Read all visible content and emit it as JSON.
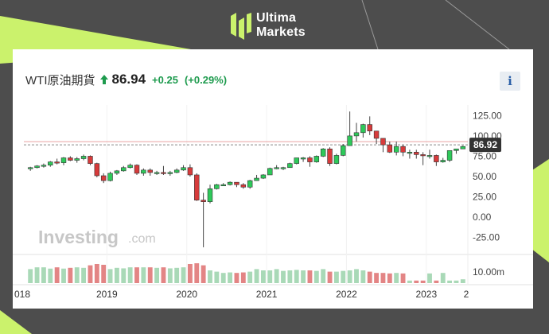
{
  "brand": {
    "line1": "Ultima",
    "line2": "Markets",
    "logo": "ultima-markets-logo"
  },
  "header": {
    "symbol": "WTI原油期貨",
    "price": "86.94",
    "change": "+0.25",
    "change_pct": "(+0.29%)",
    "direction": "up",
    "info_label": "i",
    "up_color": "#1e9b4e"
  },
  "watermark": {
    "main": "Investing",
    "suffix": ".com"
  },
  "chart_data": {
    "type": "candlestick",
    "interval": "monthly",
    "y_ticks": [
      "125.00",
      "100.00",
      "75.00",
      "50.00",
      "25.00",
      "0.00",
      "-25.00"
    ],
    "ylim": [
      -40,
      140
    ],
    "volume_tick": "10.00m",
    "x_ticks": [
      "018",
      "2019",
      "2020",
      "2021",
      "2022",
      "2023",
      "2"
    ],
    "last_price_label": "86.92",
    "reference_level": 90,
    "colors": {
      "up": "#2ec95a",
      "down": "#d73b3b",
      "vol_up": "#a9d9b7",
      "vol_down": "#e38585"
    },
    "candles": [
      {
        "o": 60,
        "h": 62,
        "l": 57,
        "c": 61
      },
      {
        "o": 61,
        "h": 64,
        "l": 60,
        "c": 63
      },
      {
        "o": 63,
        "h": 66,
        "l": 61,
        "c": 64
      },
      {
        "o": 64,
        "h": 69,
        "l": 62,
        "c": 68
      },
      {
        "o": 68,
        "h": 72,
        "l": 65,
        "c": 67
      },
      {
        "o": 67,
        "h": 74,
        "l": 64,
        "c": 73
      },
      {
        "o": 73,
        "h": 75,
        "l": 69,
        "c": 70
      },
      {
        "o": 70,
        "h": 74,
        "l": 67,
        "c": 72
      },
      {
        "o": 72,
        "h": 77,
        "l": 70,
        "c": 75
      },
      {
        "o": 75,
        "h": 76,
        "l": 64,
        "c": 66
      },
      {
        "o": 66,
        "h": 67,
        "l": 49,
        "c": 51
      },
      {
        "o": 51,
        "h": 54,
        "l": 42,
        "c": 45
      },
      {
        "o": 45,
        "h": 56,
        "l": 44,
        "c": 54
      },
      {
        "o": 54,
        "h": 58,
        "l": 52,
        "c": 57
      },
      {
        "o": 57,
        "h": 63,
        "l": 56,
        "c": 61
      },
      {
        "o": 61,
        "h": 66,
        "l": 60,
        "c": 64
      },
      {
        "o": 64,
        "h": 65,
        "l": 52,
        "c": 54
      },
      {
        "o": 54,
        "h": 60,
        "l": 51,
        "c": 58
      },
      {
        "o": 58,
        "h": 60,
        "l": 51,
        "c": 55
      },
      {
        "o": 55,
        "h": 57,
        "l": 52,
        "c": 55
      },
      {
        "o": 55,
        "h": 63,
        "l": 52,
        "c": 54
      },
      {
        "o": 54,
        "h": 57,
        "l": 51,
        "c": 55
      },
      {
        "o": 55,
        "h": 60,
        "l": 54,
        "c": 58
      },
      {
        "o": 58,
        "h": 64,
        "l": 57,
        "c": 61
      },
      {
        "o": 61,
        "h": 65,
        "l": 50,
        "c": 52
      },
      {
        "o": 52,
        "h": 54,
        "l": 20,
        "c": 21
      },
      {
        "o": 21,
        "h": 30,
        "l": -37,
        "c": 19
      },
      {
        "o": 19,
        "h": 40,
        "l": 17,
        "c": 35
      },
      {
        "o": 35,
        "h": 41,
        "l": 34,
        "c": 40
      },
      {
        "o": 40,
        "h": 42,
        "l": 39,
        "c": 40
      },
      {
        "o": 40,
        "h": 44,
        "l": 39,
        "c": 43
      },
      {
        "o": 43,
        "h": 43,
        "l": 37,
        "c": 40
      },
      {
        "o": 40,
        "h": 42,
        "l": 35,
        "c": 37
      },
      {
        "o": 37,
        "h": 46,
        "l": 35,
        "c": 45
      },
      {
        "o": 45,
        "h": 52,
        "l": 45,
        "c": 48
      },
      {
        "o": 48,
        "h": 53,
        "l": 47,
        "c": 52
      },
      {
        "o": 52,
        "h": 61,
        "l": 52,
        "c": 60
      },
      {
        "o": 60,
        "h": 64,
        "l": 59,
        "c": 61
      },
      {
        "o": 61,
        "h": 62,
        "l": 58,
        "c": 61
      },
      {
        "o": 61,
        "h": 67,
        "l": 61,
        "c": 66
      },
      {
        "o": 66,
        "h": 73,
        "l": 65,
        "c": 73
      },
      {
        "o": 73,
        "h": 74,
        "l": 68,
        "c": 73
      },
      {
        "o": 73,
        "h": 75,
        "l": 62,
        "c": 68
      },
      {
        "o": 68,
        "h": 76,
        "l": 67,
        "c": 75
      },
      {
        "o": 75,
        "h": 85,
        "l": 74,
        "c": 84
      },
      {
        "o": 84,
        "h": 86,
        "l": 63,
        "c": 66
      },
      {
        "o": 66,
        "h": 78,
        "l": 65,
        "c": 76
      },
      {
        "o": 76,
        "h": 90,
        "l": 75,
        "c": 88
      },
      {
        "o": 88,
        "h": 130,
        "l": 88,
        "c": 100
      },
      {
        "o": 100,
        "h": 116,
        "l": 93,
        "c": 104
      },
      {
        "o": 104,
        "h": 115,
        "l": 98,
        "c": 114
      },
      {
        "o": 114,
        "h": 124,
        "l": 101,
        "c": 106
      },
      {
        "o": 106,
        "h": 106,
        "l": 90,
        "c": 97
      },
      {
        "o": 97,
        "h": 97,
        "l": 80,
        "c": 89
      },
      {
        "o": 89,
        "h": 93,
        "l": 79,
        "c": 80
      },
      {
        "o": 80,
        "h": 93,
        "l": 76,
        "c": 87
      },
      {
        "o": 87,
        "h": 89,
        "l": 75,
        "c": 80
      },
      {
        "o": 80,
        "h": 83,
        "l": 72,
        "c": 80
      },
      {
        "o": 80,
        "h": 83,
        "l": 72,
        "c": 77
      },
      {
        "o": 77,
        "h": 80,
        "l": 64,
        "c": 76
      },
      {
        "o": 76,
        "h": 83,
        "l": 72,
        "c": 76
      },
      {
        "o": 76,
        "h": 77,
        "l": 63,
        "c": 68
      },
      {
        "o": 68,
        "h": 73,
        "l": 67,
        "c": 70
      },
      {
        "o": 70,
        "h": 82,
        "l": 68,
        "c": 82
      },
      {
        "o": 82,
        "h": 84,
        "l": 78,
        "c": 84
      },
      {
        "o": 84,
        "h": 88,
        "l": 84,
        "c": 87
      }
    ],
    "volume": [
      0.55,
      0.62,
      0.62,
      0.57,
      0.62,
      0.57,
      0.6,
      0.62,
      0.6,
      0.7,
      0.75,
      0.72,
      0.55,
      0.6,
      0.58,
      0.62,
      0.62,
      0.62,
      0.62,
      0.6,
      0.62,
      0.58,
      0.6,
      0.62,
      0.75,
      0.78,
      0.7,
      0.5,
      0.45,
      0.4,
      0.42,
      0.4,
      0.42,
      0.45,
      0.55,
      0.5,
      0.5,
      0.55,
      0.48,
      0.5,
      0.52,
      0.5,
      0.5,
      0.48,
      0.55,
      0.45,
      0.45,
      0.48,
      0.5,
      0.55,
      0.5,
      0.45,
      0.4,
      0.4,
      0.38,
      0.4,
      0.38,
      0.1,
      0.1,
      0.1,
      0.38,
      0.1,
      0.4,
      0.1,
      0.1,
      0.15
    ]
  }
}
